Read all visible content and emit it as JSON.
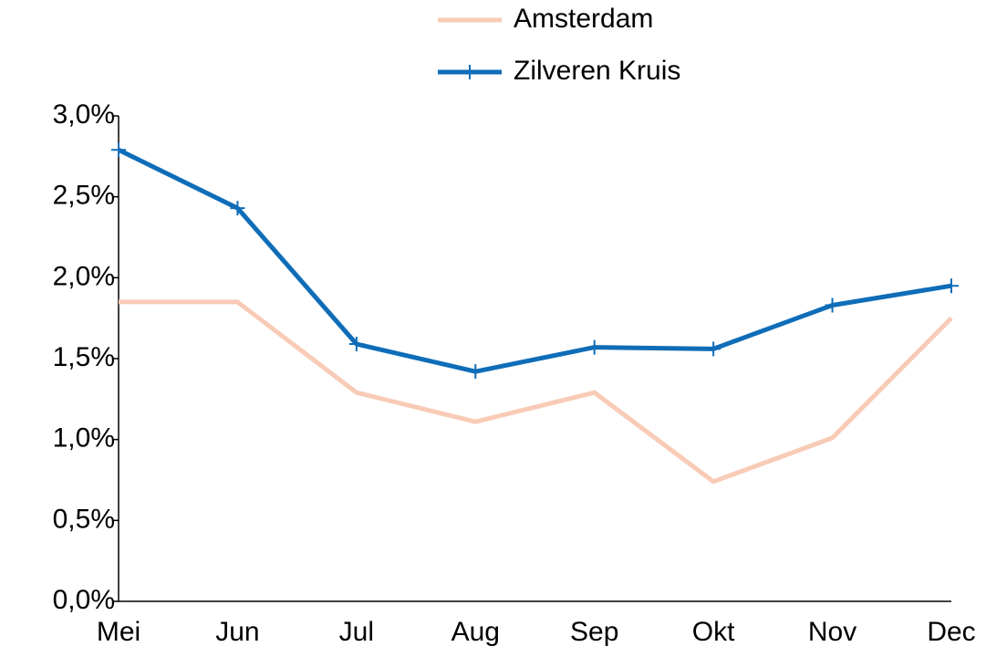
{
  "chart_data": {
    "type": "line",
    "categories": [
      "Mei",
      "Jun",
      "Jul",
      "Aug",
      "Sep",
      "Okt",
      "Nov",
      "Dec"
    ],
    "series": [
      {
        "name": "Amsterdam",
        "color": "#f8cbb6",
        "values": [
          1.85,
          1.85,
          1.29,
          1.11,
          1.29,
          0.74,
          1.01,
          1.75
        ]
      },
      {
        "name": "Zilveren Kruis",
        "color": "#0f6db8",
        "marker": "plus",
        "values": [
          2.79,
          2.43,
          1.59,
          1.42,
          1.57,
          1.56,
          1.83,
          1.95
        ]
      }
    ],
    "ylim": [
      0,
      3
    ],
    "yticks": [
      {
        "value": 0,
        "label": "0,0%"
      },
      {
        "value": 0.5,
        "label": "0,5%"
      },
      {
        "value": 1,
        "label": "1,0%"
      },
      {
        "value": 1.5,
        "label": "1,5%"
      },
      {
        "value": 2,
        "label": "2,0%"
      },
      {
        "value": 2.5,
        "label": "2,5%"
      },
      {
        "value": 3,
        "label": "3,0%"
      }
    ],
    "grid": false,
    "legend": "top"
  }
}
